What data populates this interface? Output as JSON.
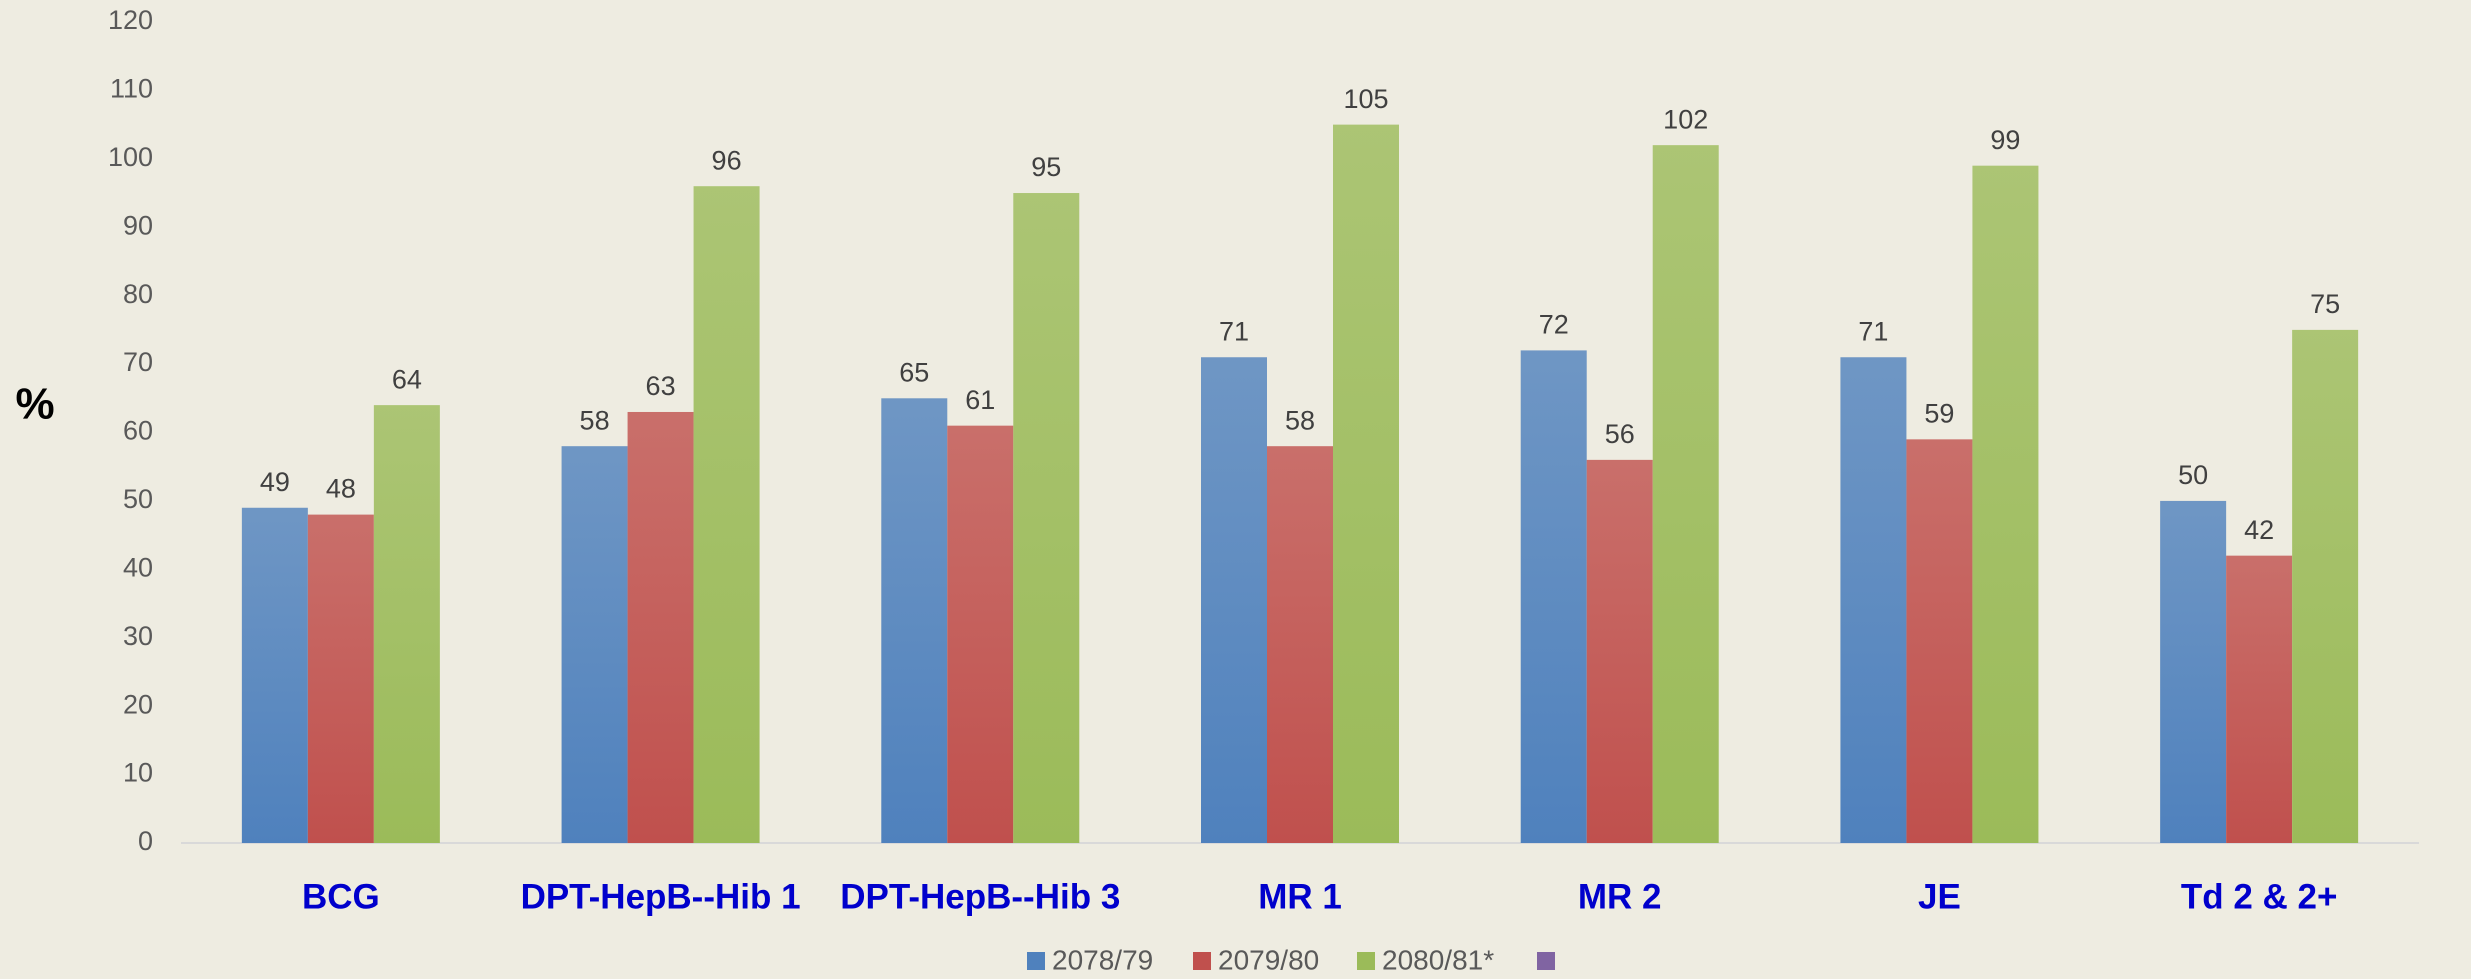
{
  "chart_data": {
    "type": "bar",
    "y_axis_label": "%",
    "categories": [
      "BCG",
      "DPT-HepB--Hib 1",
      "DPT-HepB--Hib 3",
      "MR 1",
      "MR 2",
      "JE",
      "Td 2 & 2+"
    ],
    "series": [
      {
        "name": "2078/79",
        "color": "#4f81bd",
        "values": [
          49,
          58,
          65,
          71,
          72,
          71,
          50
        ]
      },
      {
        "name": "2079/80",
        "color": "#c0504d",
        "values": [
          48,
          63,
          61,
          58,
          56,
          59,
          42
        ]
      },
      {
        "name": "2080/81*",
        "color": "#9bbb59",
        "values": [
          64,
          96,
          95,
          105,
          102,
          99,
          75
        ]
      }
    ],
    "ylim": [
      0,
      120
    ],
    "yticks": [
      0,
      10,
      20,
      30,
      40,
      50,
      60,
      70,
      80,
      90,
      100,
      110,
      120
    ],
    "grid": false,
    "legend": "bottom"
  }
}
